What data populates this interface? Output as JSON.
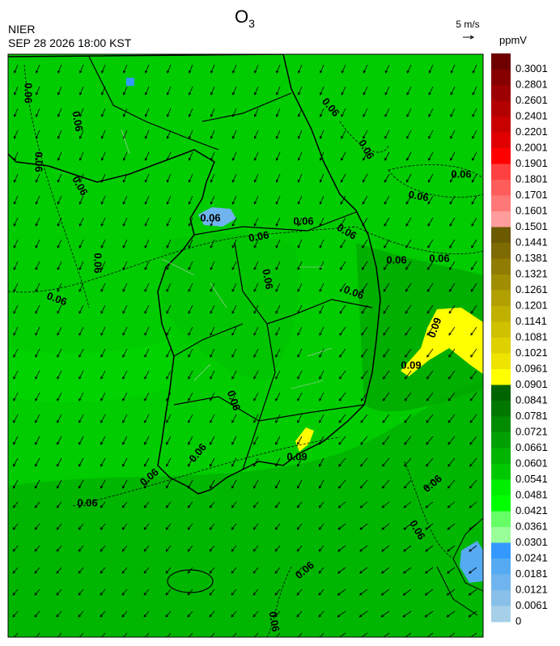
{
  "header": {
    "agency": "NIER",
    "timestamp": "SEP 28 2026 18:00 KST",
    "title": {
      "main": "O",
      "subscript": "3"
    }
  },
  "wind_scale": {
    "label": "5 m/s"
  },
  "colorbar": {
    "unit": "ppmV",
    "levels": [
      {
        "label": 0.3001,
        "color": "#6e0000"
      },
      {
        "label": 0.2801,
        "color": "#860000"
      },
      {
        "label": 0.2601,
        "color": "#9c0000"
      },
      {
        "label": 0.2401,
        "color": "#b30000"
      },
      {
        "label": 0.2201,
        "color": "#c90000"
      },
      {
        "label": 0.2001,
        "color": "#e00000"
      },
      {
        "label": 0.1901,
        "color": "#ff0000"
      },
      {
        "label": 0.1801,
        "color": "#ff4040"
      },
      {
        "label": 0.1701,
        "color": "#ff5c5c"
      },
      {
        "label": 0.1601,
        "color": "#ff7878"
      },
      {
        "label": 0.1501,
        "color": "#ff9c9c"
      },
      {
        "label": 0.1441,
        "color": "#6b5a00"
      },
      {
        "label": 0.1381,
        "color": "#7d6a00"
      },
      {
        "label": 0.1321,
        "color": "#8f7c00"
      },
      {
        "label": 0.1261,
        "color": "#a08e00"
      },
      {
        "label": 0.1201,
        "color": "#b1a000"
      },
      {
        "label": 0.1141,
        "color": "#c0b000"
      },
      {
        "label": 0.1081,
        "color": "#cfc000"
      },
      {
        "label": 0.1021,
        "color": "#dfd000"
      },
      {
        "label": 0.0961,
        "color": "#eee400"
      },
      {
        "label": 0.0901,
        "color": "#ffff00"
      },
      {
        "label": 0.0841,
        "color": "#006400"
      },
      {
        "label": 0.0781,
        "color": "#007800"
      },
      {
        "label": 0.0721,
        "color": "#008c00"
      },
      {
        "label": 0.0661,
        "color": "#00a000"
      },
      {
        "label": 0.0601,
        "color": "#00b400"
      },
      {
        "label": 0.0541,
        "color": "#00c800"
      },
      {
        "label": 0.0481,
        "color": "#00ee00"
      },
      {
        "label": 0.0421,
        "color": "#00ff00"
      },
      {
        "label": 0.0361,
        "color": "#66ff66"
      },
      {
        "label": 0.0301,
        "color": "#99ff99"
      },
      {
        "label": 0.0241,
        "color": "#3399ff"
      },
      {
        "label": 0.0181,
        "color": "#55aaf2"
      },
      {
        "label": 0.0121,
        "color": "#6fb4ee"
      },
      {
        "label": 0.0061,
        "color": "#88c0ea"
      },
      {
        "label": 0,
        "color": "#a6d0e8"
      }
    ]
  },
  "map": {
    "contour_labels": [
      "0.06",
      "0.06",
      "0.06",
      "0.06",
      "0.06",
      "0.06",
      "0.06",
      "0.06",
      "0.06",
      "0.06",
      "0.06",
      "0.06",
      "0.06",
      "0.06",
      "0.06",
      "0.06",
      "0.06",
      "0.06",
      "0.06",
      "0.06",
      "0.06",
      "0.06",
      "0.06",
      "0.06",
      "0.06",
      "0.06",
      "0.09",
      "0.09",
      "0.09"
    ]
  }
}
